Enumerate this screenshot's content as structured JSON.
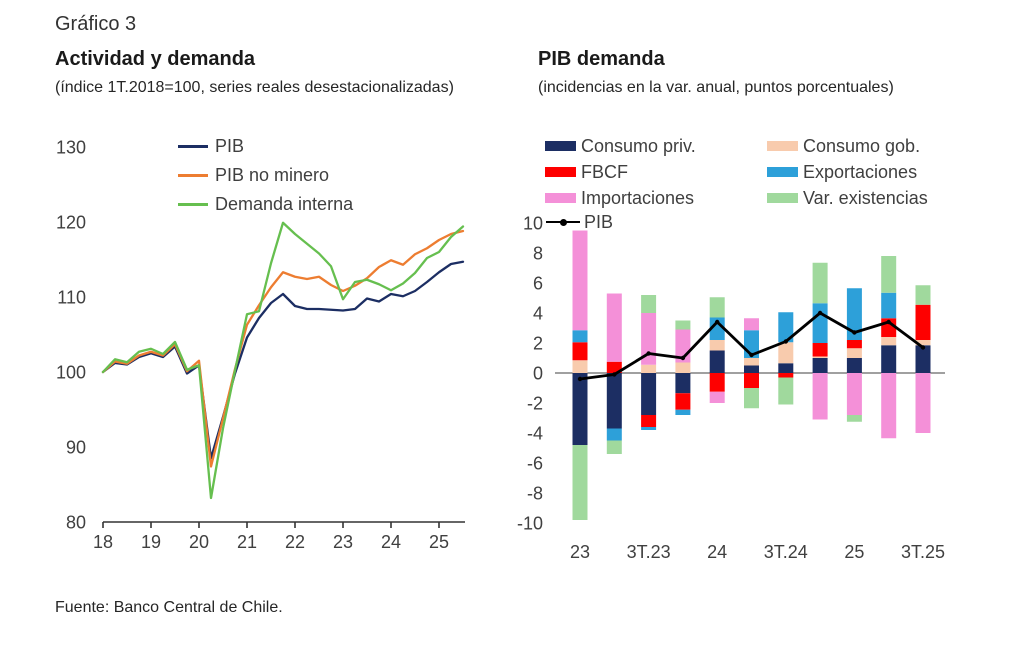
{
  "page": {
    "figure_label": "Gráfico 3",
    "source": "Fuente: Banco Central de Chile."
  },
  "colors": {
    "navy": "#1c2e63",
    "orange": "#ED7D31",
    "green": "#66bf4f",
    "red": "#fe0000",
    "peach": "#F8CBAD",
    "blue": "#2da0d9",
    "pink": "#f490d8",
    "lightgreen": "#a0d99d",
    "black": "#000000",
    "axis": "#333333",
    "zero": "#808080"
  },
  "chart_data": [
    {
      "type": "line",
      "title": "Actividad y demanda",
      "subtitle": "(índice 1T.2018=100, series reales desestacionalizadas)",
      "x_start": "1T.2018",
      "x_frequency": "quarterly",
      "xticks": [
        "18",
        "19",
        "20",
        "21",
        "22",
        "23",
        "24",
        "25"
      ],
      "yticks": [
        130,
        120,
        110,
        100,
        90,
        80
      ],
      "ylim": [
        80,
        130
      ],
      "grid": false,
      "legend_position": "top-inside",
      "series": [
        {
          "name": "PIB",
          "color_key": "navy",
          "values": [
            100.0,
            101.2,
            101.0,
            102.0,
            102.5,
            102.0,
            103.4,
            99.8,
            100.9,
            88.5,
            94.0,
            99.8,
            104.6,
            107.2,
            109.2,
            110.4,
            108.8,
            108.4,
            108.4,
            108.3,
            108.2,
            108.4,
            109.8,
            109.4,
            110.4,
            110.1,
            110.8,
            112.0,
            113.3,
            114.4,
            114.7
          ]
        },
        {
          "name": "PIB no minero",
          "color_key": "orange",
          "values": [
            100.0,
            101.4,
            101.1,
            102.2,
            102.7,
            102.2,
            103.7,
            100.1,
            101.5,
            87.4,
            93.8,
            100.4,
            106.3,
            108.9,
            111.3,
            113.3,
            112.7,
            112.4,
            112.7,
            111.6,
            110.8,
            111.5,
            112.5,
            114.0,
            114.9,
            114.3,
            115.7,
            116.5,
            117.6,
            118.4,
            118.8
          ]
        },
        {
          "name": "Demanda interna",
          "color_key": "green",
          "values": [
            100.0,
            101.7,
            101.3,
            102.7,
            103.1,
            102.4,
            104.0,
            100.3,
            100.9,
            83.2,
            92.5,
            100.2,
            107.7,
            108.1,
            114.5,
            119.9,
            118.4,
            117.1,
            115.8,
            114.1,
            109.7,
            112.0,
            112.3,
            111.7,
            110.9,
            111.8,
            113.2,
            115.2,
            116.0,
            118.0,
            119.4
          ]
        }
      ]
    },
    {
      "type": "stacked_bar_line",
      "title": "PIB demanda",
      "subtitle": "(incidencias en la var. anual, puntos porcentuales)",
      "categories": [
        "1T.23",
        "2T.23",
        "3T.23",
        "4T.23",
        "1T.24",
        "2T.24",
        "3T.24",
        "4T.24",
        "1T.25",
        "2T.25",
        "3T.25"
      ],
      "xticks": [
        {
          "i": 0,
          "label": "23"
        },
        {
          "i": 2,
          "label": "3T.23"
        },
        {
          "i": 4,
          "label": "24"
        },
        {
          "i": 6,
          "label": "3T.24"
        },
        {
          "i": 8,
          "label": "25"
        },
        {
          "i": 10,
          "label": "3T.25"
        }
      ],
      "yticks": [
        10,
        8,
        6,
        4,
        2,
        0,
        -2,
        -4,
        -6,
        -8,
        -10
      ],
      "ylim": [
        -10,
        10
      ],
      "grid": false,
      "legend_position": "top",
      "series": [
        {
          "name": "Consumo priv.",
          "color_key": "navy",
          "values": [
            -4.8,
            -3.7,
            -2.8,
            -1.35,
            1.5,
            0.5,
            0.65,
            1.0,
            1.0,
            1.85,
            1.85
          ]
        },
        {
          "name": "Consumo gob.",
          "color_key": "peach",
          "values": [
            0.85,
            0.0,
            0.55,
            0.7,
            0.7,
            0.5,
            1.4,
            0.1,
            0.65,
            0.55,
            0.35
          ]
        },
        {
          "name": "FBCF",
          "color_key": "red",
          "values": [
            1.2,
            0.75,
            -0.8,
            -1.1,
            -1.25,
            -1.0,
            -0.3,
            0.9,
            0.55,
            1.25,
            2.35
          ]
        },
        {
          "name": "Exportaciones",
          "color_key": "blue",
          "values": [
            0.8,
            -0.8,
            -0.2,
            -0.35,
            1.5,
            1.85,
            2.0,
            2.65,
            3.45,
            1.7,
            0.0
          ]
        },
        {
          "name": "Importaciones",
          "color_key": "pink",
          "values": [
            6.65,
            4.55,
            3.45,
            2.2,
            -0.75,
            0.8,
            0.0,
            -3.1,
            -2.8,
            -4.35,
            -4.0
          ]
        },
        {
          "name": "Var. existencias",
          "color_key": "lightgreen",
          "values": [
            -5.0,
            -0.9,
            1.2,
            0.6,
            1.35,
            -1.35,
            -1.8,
            2.7,
            -0.45,
            2.45,
            1.3
          ]
        }
      ],
      "line": {
        "name": "PIB",
        "color_key": "black",
        "values": [
          -0.4,
          -0.1,
          1.3,
          1.0,
          3.4,
          1.2,
          2.1,
          4.0,
          2.7,
          3.4,
          1.7
        ]
      }
    }
  ]
}
